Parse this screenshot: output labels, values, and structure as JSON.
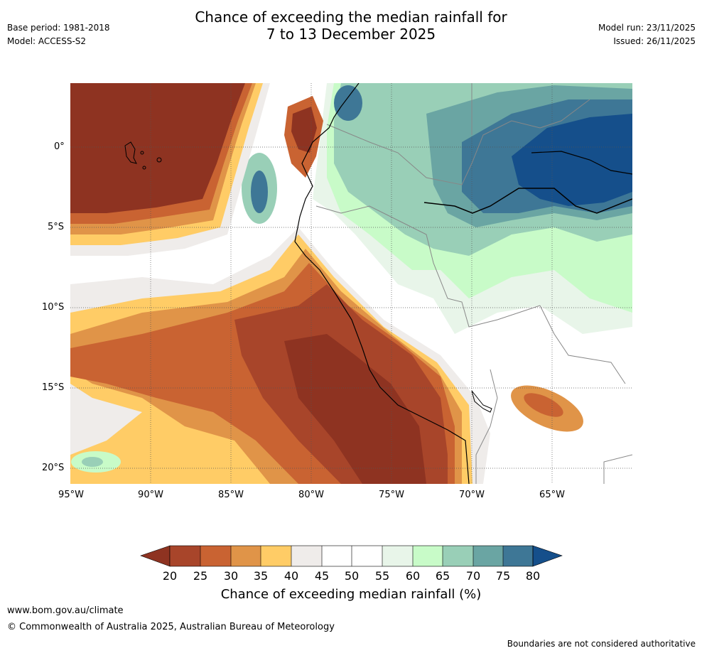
{
  "header": {
    "base_period": "Base period: 1981-2018",
    "model": "Model: ACCESS-S2",
    "model_run": "Model run: 23/11/2025",
    "issued": "Issued: 26/11/2025",
    "title_line1": "Chance of exceeding the median rainfall for",
    "title_line2": "7 to 13 December 2025"
  },
  "map": {
    "lat_labels": [
      "0°",
      "5°S",
      "10°S",
      "15°S",
      "20°S"
    ],
    "lon_labels": [
      "95°W",
      "90°W",
      "85°W",
      "80°W",
      "75°W",
      "70°W",
      "65°W"
    ]
  },
  "colorbar": {
    "ticks": [
      "20",
      "25",
      "30",
      "35",
      "40",
      "45",
      "50",
      "55",
      "60",
      "65",
      "70",
      "75",
      "80"
    ],
    "label": "Chance of exceeding median rainfall (%)",
    "colors": {
      "lt20": "#8e3321",
      "c20_25": "#a8452a",
      "c25_30": "#c96332",
      "c30_35": "#e09448",
      "c35_40": "#ffcc66",
      "c40_45": "#efecea",
      "c45_50": "#ffffff",
      "c50_55": "#ffffff",
      "c55_60": "#e8f5e9",
      "c60_65": "#c8fbc8",
      "c65_70": "#99cfb7",
      "c70_75": "#6aa5a3",
      "c75_80": "#3e7796",
      "gt80": "#154f8b"
    }
  },
  "footer": {
    "site": "www.bom.gov.au/climate",
    "copyright": "© Commonwealth of Australia 2025, Australian Bureau of Meteorology",
    "disclaimer": "Boundaries are not considered authoritative"
  }
}
